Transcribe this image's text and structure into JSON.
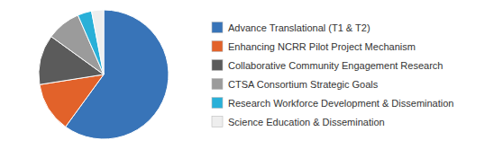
{
  "chart_data": {
    "type": "pie",
    "categories": [
      "Advance Translational (T1 & T2)",
      "Enhancing NCRR Pilot Project Mechanism",
      "Collaborative Community Engagement Research",
      "CTSA Consortium Strategic Goals",
      "Research Workforce Development & Dissemination",
      "Science Education & Dissemination"
    ],
    "values": [
      60,
      12.5,
      12.5,
      8.5,
      3.5,
      3.0
    ],
    "colors": [
      "#3874B8",
      "#E2622A",
      "#5B5B5B",
      "#9B9B9B",
      "#29B0D8",
      "#EEEEEE"
    ],
    "legend": "right"
  }
}
